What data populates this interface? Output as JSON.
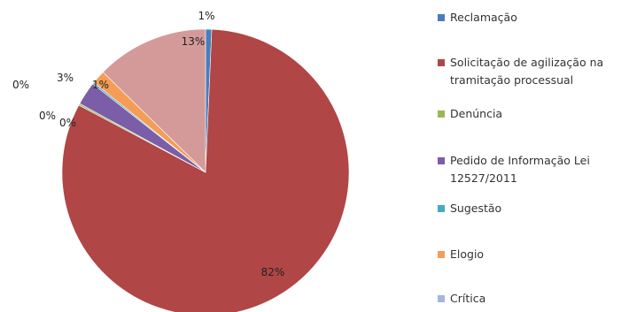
{
  "chart_data": {
    "type": "pie",
    "legend_position": "right",
    "slices": [
      {
        "name": "Reclamação",
        "value": 1,
        "label": "1%",
        "color": "#4a7ebb"
      },
      {
        "name": "Solicitação de agilização na tramitação processual",
        "value": 82,
        "label": "82%",
        "color": "#b04645"
      },
      {
        "name": "Denúncia",
        "value": 0,
        "label": "0%",
        "color": "#98b954"
      },
      {
        "name": "Pedido de Informação Lei 12527/2011",
        "value": 3,
        "label": "3%",
        "color": "#7b5ea7"
      },
      {
        "name": "Sugestão",
        "value": 0,
        "label": "0%",
        "color": "#46aac5"
      },
      {
        "name": "Elogio",
        "value": 1,
        "label": "1%",
        "color": "#f59d56"
      },
      {
        "name": "Crítica",
        "value": 13,
        "label": "13%",
        "color": "#d49a9a"
      }
    ],
    "legend": [
      {
        "lines": [
          "Reclamação"
        ],
        "color": "#4a7ebb"
      },
      {
        "lines": [
          "Solicitação de agilização na",
          "tramitação processual"
        ],
        "color": "#b04645"
      },
      {
        "lines": [
          "Denúncia"
        ],
        "color": "#98b954"
      },
      {
        "lines": [
          "Pedido de Informação Lei",
          "12527/2011"
        ],
        "color": "#7b5ea7"
      },
      {
        "lines": [
          "Sugestão"
        ],
        "color": "#46aac5"
      },
      {
        "lines": [
          "Elogio"
        ],
        "color": "#f59d56"
      },
      {
        "lines": [
          "Crítica"
        ],
        "color": "#a5b6d9"
      }
    ]
  }
}
